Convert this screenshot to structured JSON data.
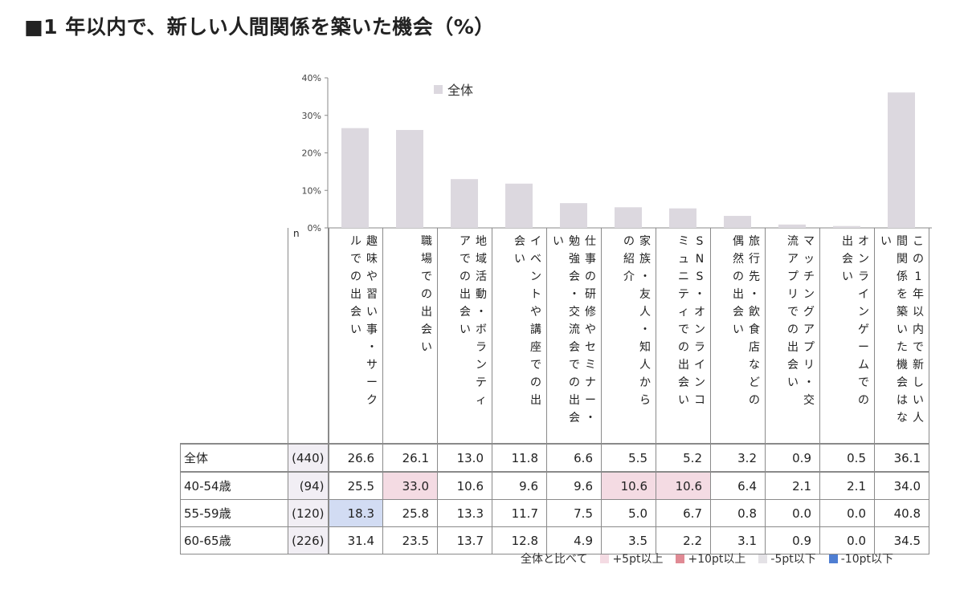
{
  "title": "■1 年以内で、新しい人間関係を築いた機会（%）",
  "chart_data": {
    "type": "bar",
    "title": "■1 年以内で、新しい人間関係を築いた機会（%）",
    "legend": "全体",
    "legend_position": "top-left",
    "ylim": [
      0,
      40
    ],
    "yticks": [
      "0%",
      "10%",
      "20%",
      "30%",
      "40%"
    ],
    "ytick_values": [
      0,
      10,
      20,
      30,
      40
    ],
    "bar_color": "#dcd8df",
    "categories": [
      "趣味や習い事・サークルでの出会い",
      "職場での出会い",
      "地域活動・ボランティアでの出会い",
      "イベントや講座での出会い",
      "仕事の研修やセミナー・勉強会・交流会での出会い",
      "家族・友人・知人からの紹介",
      "SNS・オンラインコミュニティでの出会い",
      "旅行先・飲食店などの偶然の出会い",
      "マッチングアプリ・交流アプリでの出会い",
      "オンラインゲームでの出会い",
      "この1年以内で新しい人間関係を築いた機会はない"
    ],
    "values": [
      26.6,
      26.1,
      13.0,
      11.8,
      6.6,
      5.5,
      5.2,
      3.2,
      0.9,
      0.5,
      36.1
    ]
  },
  "header_columns": [
    [
      "趣味や習い事・サーク",
      "ルでの出会い"
    ],
    [
      "職場での出会い"
    ],
    [
      "地域活動・ボランティ",
      "アでの出会い"
    ],
    [
      "イベントや講座での出",
      "会い"
    ],
    [
      "仕事の研修やセミナー・",
      "勉強会・交流会での出会",
      "い"
    ],
    [
      "家族・友人・知人から",
      "の紹介"
    ],
    [
      "SNS・オンラインコ",
      "ミュニティでの出会い"
    ],
    [
      "旅行先・飲食店などの",
      "偶然の出会い"
    ],
    [
      "マッチングアプリ・交",
      "流アプリでの出会い"
    ],
    [
      "オンラインゲームでの",
      "出会い"
    ],
    [
      "この1年以内で新しい人",
      "間関係を築いた機会はな",
      "い"
    ]
  ],
  "table": {
    "n_label": "n",
    "rows": [
      {
        "label": "全体",
        "n": "(440)",
        "values": [
          "26.6",
          "26.1",
          "13.0",
          "11.8",
          "6.6",
          "5.5",
          "5.2",
          "3.2",
          "0.9",
          "0.5",
          "36.1"
        ]
      },
      {
        "label": "40-54歳",
        "n": "(94)",
        "values": [
          "25.5",
          "33.0",
          "10.6",
          "9.6",
          "9.6",
          "10.6",
          "10.6",
          "6.4",
          "2.1",
          "2.1",
          "34.0"
        ]
      },
      {
        "label": "55-59歳",
        "n": "(120)",
        "values": [
          "18.3",
          "25.8",
          "13.3",
          "11.7",
          "7.5",
          "5.0",
          "6.7",
          "0.8",
          "0.0",
          "0.0",
          "40.8"
        ]
      },
      {
        "label": "60-65歳",
        "n": "(226)",
        "values": [
          "31.4",
          "23.5",
          "13.7",
          "12.8",
          "4.9",
          "3.5",
          "2.2",
          "3.1",
          "0.9",
          "0.0",
          "34.5"
        ]
      }
    ],
    "highlights": [
      {
        "row": 1,
        "col": 1,
        "style": "pink"
      },
      {
        "row": 1,
        "col": 5,
        "style": "pink"
      },
      {
        "row": 1,
        "col": 6,
        "style": "pink"
      },
      {
        "row": 2,
        "col": 0,
        "style": "blue"
      }
    ]
  },
  "legend_bottom": {
    "label": "全体と比べて",
    "items": [
      {
        "label": "+5pt以上",
        "color": "#f4dbe3"
      },
      {
        "label": "+10pt以上",
        "color": "#e08a94"
      },
      {
        "label": "-5pt以下",
        "color": "#e4e2e6"
      },
      {
        "label": "-10pt以下",
        "color": "#4f7ed2"
      }
    ]
  },
  "colors": {
    "bar": "#dcd8df",
    "axis": "#8a8a8a",
    "n_cell_bg": "#f1eef4",
    "highlight_pink": "#f4dbe3",
    "highlight_blue": "#d2dcf3"
  }
}
